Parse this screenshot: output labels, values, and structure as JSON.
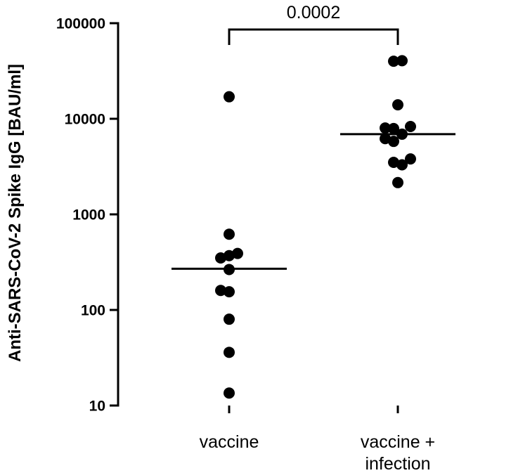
{
  "chart_data": {
    "type": "scatter",
    "title": "",
    "xlabel": "",
    "ylabel": "Anti-SARS-CoV-2 Spike IgG [BAU/ml]",
    "yscale": "log",
    "ylim": [
      10,
      100000
    ],
    "yticks": [
      10,
      100,
      1000,
      10000,
      100000
    ],
    "ytick_labels": [
      "10",
      "100",
      "1000",
      "10000",
      "100000"
    ],
    "categories": [
      "vaccine",
      "vaccine + infection"
    ],
    "groups": [
      {
        "label_lines": [
          "vaccine"
        ],
        "points": [
          {
            "value": 17000,
            "jitter": 0
          },
          {
            "value": 620,
            "jitter": 0
          },
          {
            "value": 390,
            "jitter": 1
          },
          {
            "value": 370,
            "jitter": 0
          },
          {
            "value": 350,
            "jitter": -1
          },
          {
            "value": 265,
            "jitter": 0
          },
          {
            "value": 160,
            "jitter": -1
          },
          {
            "value": 155,
            "jitter": 0
          },
          {
            "value": 80,
            "jitter": 0
          },
          {
            "value": 36,
            "jitter": 0
          },
          {
            "value": 13.5,
            "jitter": 0
          }
        ],
        "median": 270
      },
      {
        "label_lines": [
          "vaccine +",
          "infection"
        ],
        "points": [
          {
            "value": 40000,
            "jitter": -0.5
          },
          {
            "value": 40500,
            "jitter": 0.5
          },
          {
            "value": 14000,
            "jitter": 0
          },
          {
            "value": 8300,
            "jitter": 1.5
          },
          {
            "value": 8000,
            "jitter": -1.5
          },
          {
            "value": 7900,
            "jitter": -0.5
          },
          {
            "value": 6900,
            "jitter": 0.5
          },
          {
            "value": 6200,
            "jitter": -1.5
          },
          {
            "value": 5800,
            "jitter": -0.5
          },
          {
            "value": 3800,
            "jitter": 1.5
          },
          {
            "value": 3500,
            "jitter": -0.5
          },
          {
            "value": 3300,
            "jitter": 0.5
          },
          {
            "value": 2150,
            "jitter": 0
          }
        ],
        "median": 6900
      }
    ],
    "significance": {
      "between": [
        0,
        1
      ],
      "label": "0.0002"
    },
    "grid": false,
    "legend": "none",
    "colors": {
      "marker": "#000000",
      "axis": "#000000"
    }
  }
}
